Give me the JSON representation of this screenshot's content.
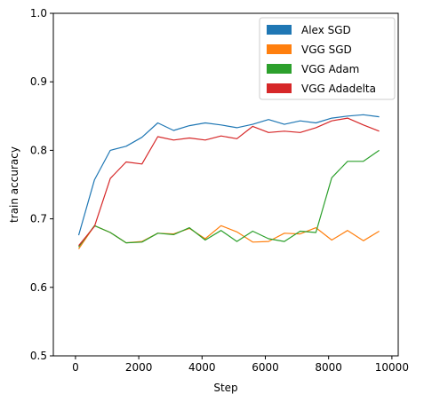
{
  "chart_data": {
    "type": "line",
    "xlabel": "Step",
    "ylabel": "train accuracy",
    "xlim": [
      -700,
      10200
    ],
    "ylim": [
      0.5,
      1.0
    ],
    "xticks": [
      0,
      2000,
      4000,
      6000,
      8000,
      10000
    ],
    "yticks": [
      0.5,
      0.6,
      0.7,
      0.8,
      0.9,
      1.0
    ],
    "xtick_labels": [
      "0",
      "2000",
      "4000",
      "6000",
      "8000",
      "10000"
    ],
    "ytick_labels": [
      "0.5",
      "0.6",
      "0.7",
      "0.8",
      "0.9",
      "1.0"
    ],
    "grid": false,
    "legend_position": "top-right",
    "x": [
      100,
      600,
      1100,
      1600,
      2100,
      2600,
      3100,
      3600,
      4100,
      4600,
      5100,
      5600,
      6100,
      6600,
      7100,
      7600,
      8100,
      8600,
      9100,
      9600
    ],
    "series": [
      {
        "name": "Alex SGD",
        "color": "#1f77b4",
        "values": [
          0.676,
          0.757,
          0.8,
          0.806,
          0.819,
          0.84,
          0.829,
          0.836,
          0.84,
          0.837,
          0.833,
          0.838,
          0.845,
          0.838,
          0.843,
          0.84,
          0.847,
          0.85,
          0.852,
          0.849
        ]
      },
      {
        "name": "VGG SGD",
        "color": "#ff7f0e",
        "values": [
          0.656,
          0.69,
          0.68,
          0.665,
          0.667,
          0.679,
          0.678,
          0.686,
          0.671,
          0.69,
          0.681,
          0.666,
          0.667,
          0.679,
          0.678,
          0.687,
          0.669,
          0.683,
          0.668,
          0.682
        ]
      },
      {
        "name": "VGG Adam",
        "color": "#2ca02c",
        "values": [
          0.659,
          0.69,
          0.68,
          0.665,
          0.666,
          0.679,
          0.677,
          0.687,
          0.669,
          0.683,
          0.667,
          0.682,
          0.671,
          0.667,
          0.682,
          0.68,
          0.76,
          0.784,
          0.784,
          0.8
        ]
      },
      {
        "name": "VGG Adadelta",
        "color": "#d62728",
        "values": [
          0.661,
          0.689,
          0.759,
          0.783,
          0.78,
          0.82,
          0.815,
          0.818,
          0.815,
          0.821,
          0.817,
          0.835,
          0.826,
          0.828,
          0.826,
          0.833,
          0.843,
          0.847,
          0.837,
          0.828
        ]
      }
    ]
  }
}
